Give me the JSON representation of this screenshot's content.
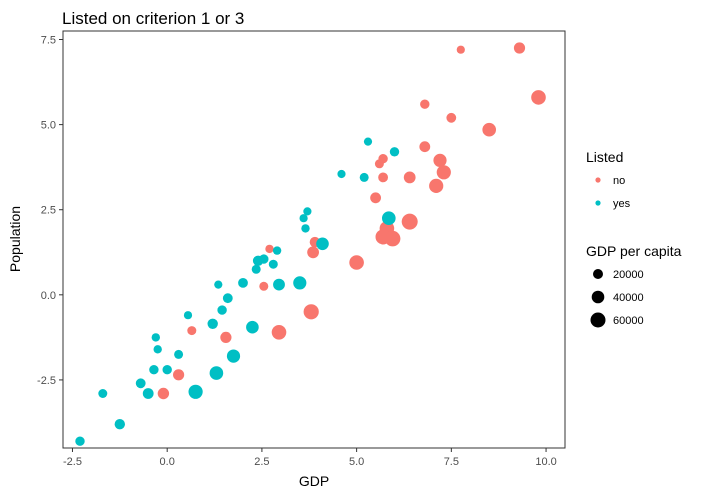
{
  "chart_data": {
    "type": "scatter",
    "title": "Listed on criterion 1 or 3",
    "xlabel": "GDP",
    "ylabel": "Population",
    "xlim": [
      -2.75,
      10.5
    ],
    "ylim": [
      -4.5,
      7.75
    ],
    "xticks": [
      -2.5,
      0.0,
      2.5,
      5.0,
      7.5,
      10.0
    ],
    "xtick_labels": [
      "-2.5",
      "0.0",
      "2.5",
      "5.0",
      "7.5",
      "10.0"
    ],
    "yticks": [
      -2.5,
      0.0,
      2.5,
      5.0,
      7.5
    ],
    "ytick_labels": [
      "-2.5",
      "0.0",
      "2.5",
      "5.0",
      "7.5"
    ],
    "grid": false,
    "legend_placement": "right",
    "colors": {
      "no": "#F8766D",
      "yes": "#00BFC4"
    },
    "color_legend": {
      "title": "Listed",
      "entries": [
        {
          "label": "no",
          "color": "#F8766D"
        },
        {
          "label": "yes",
          "color": "#00BFC4"
        }
      ]
    },
    "size_legend": {
      "title": "GDP per capita",
      "entries": [
        {
          "label": "20000",
          "value": 20000
        },
        {
          "label": "40000",
          "value": 40000
        },
        {
          "label": "60000",
          "value": 60000
        }
      ]
    },
    "series": [
      {
        "name": "no",
        "color": "#F8766D",
        "points": [
          {
            "x": 7.75,
            "y": 7.2,
            "size": 5000
          },
          {
            "x": 9.3,
            "y": 7.25,
            "size": 20000
          },
          {
            "x": 9.8,
            "y": 5.8,
            "size": 50000
          },
          {
            "x": 8.5,
            "y": 4.85,
            "size": 40000
          },
          {
            "x": 6.8,
            "y": 5.6,
            "size": 10000
          },
          {
            "x": 7.5,
            "y": 5.2,
            "size": 12000
          },
          {
            "x": 6.8,
            "y": 4.35,
            "size": 18000
          },
          {
            "x": 5.7,
            "y": 4.0,
            "size": 10000
          },
          {
            "x": 5.6,
            "y": 3.85,
            "size": 8000
          },
          {
            "x": 7.2,
            "y": 3.95,
            "size": 35000
          },
          {
            "x": 7.3,
            "y": 3.6,
            "size": 45000
          },
          {
            "x": 6.4,
            "y": 3.45,
            "size": 25000
          },
          {
            "x": 5.7,
            "y": 3.45,
            "size": 12000
          },
          {
            "x": 7.1,
            "y": 3.2,
            "size": 45000
          },
          {
            "x": 5.5,
            "y": 2.85,
            "size": 18000
          },
          {
            "x": 6.4,
            "y": 2.15,
            "size": 65000
          },
          {
            "x": 5.8,
            "y": 1.95,
            "size": 50000
          },
          {
            "x": 5.7,
            "y": 1.7,
            "size": 55000
          },
          {
            "x": 5.95,
            "y": 1.65,
            "size": 60000
          },
          {
            "x": 3.9,
            "y": 1.55,
            "size": 15000
          },
          {
            "x": 3.85,
            "y": 1.25,
            "size": 25000
          },
          {
            "x": 5.0,
            "y": 0.95,
            "size": 50000
          },
          {
            "x": 2.7,
            "y": 1.35,
            "size": 6000
          },
          {
            "x": 2.55,
            "y": 0.25,
            "size": 8000
          },
          {
            "x": 3.8,
            "y": -0.5,
            "size": 55000
          },
          {
            "x": 0.65,
            "y": -1.05,
            "size": 8000
          },
          {
            "x": 2.95,
            "y": -1.1,
            "size": 50000
          },
          {
            "x": 1.55,
            "y": -1.25,
            "size": 20000
          },
          {
            "x": 0.3,
            "y": -2.35,
            "size": 20000
          },
          {
            "x": -0.1,
            "y": -2.9,
            "size": 22000
          }
        ]
      },
      {
        "name": "yes",
        "color": "#00BFC4",
        "points": [
          {
            "x": -2.3,
            "y": -4.3,
            "size": 10000
          },
          {
            "x": -1.25,
            "y": -3.8,
            "size": 15000
          },
          {
            "x": -1.7,
            "y": -2.9,
            "size": 8000
          },
          {
            "x": -0.5,
            "y": -2.9,
            "size": 18000
          },
          {
            "x": -0.7,
            "y": -2.6,
            "size": 12000
          },
          {
            "x": 0.75,
            "y": -2.85,
            "size": 45000
          },
          {
            "x": -0.35,
            "y": -2.2,
            "size": 10000
          },
          {
            "x": 0.0,
            "y": -2.2,
            "size": 10000
          },
          {
            "x": 1.3,
            "y": -2.3,
            "size": 40000
          },
          {
            "x": 1.75,
            "y": -1.8,
            "size": 35000
          },
          {
            "x": -0.25,
            "y": -1.6,
            "size": 6000
          },
          {
            "x": 0.3,
            "y": -1.75,
            "size": 8000
          },
          {
            "x": -0.3,
            "y": -1.25,
            "size": 6000
          },
          {
            "x": 1.2,
            "y": -0.85,
            "size": 15000
          },
          {
            "x": 2.25,
            "y": -0.95,
            "size": 30000
          },
          {
            "x": 0.55,
            "y": -0.6,
            "size": 5000
          },
          {
            "x": 1.45,
            "y": -0.45,
            "size": 10000
          },
          {
            "x": 1.6,
            "y": -0.1,
            "size": 12000
          },
          {
            "x": 1.35,
            "y": 0.3,
            "size": 5000
          },
          {
            "x": 2.0,
            "y": 0.35,
            "size": 12000
          },
          {
            "x": 2.95,
            "y": 0.3,
            "size": 25000
          },
          {
            "x": 3.5,
            "y": 0.35,
            "size": 35000
          },
          {
            "x": 2.35,
            "y": 0.75,
            "size": 8000
          },
          {
            "x": 2.4,
            "y": 1.0,
            "size": 15000
          },
          {
            "x": 2.55,
            "y": 1.05,
            "size": 10000
          },
          {
            "x": 2.8,
            "y": 0.9,
            "size": 8000
          },
          {
            "x": 2.9,
            "y": 1.3,
            "size": 6000
          },
          {
            "x": 4.1,
            "y": 1.5,
            "size": 30000
          },
          {
            "x": 3.65,
            "y": 1.95,
            "size": 6000
          },
          {
            "x": 3.6,
            "y": 2.25,
            "size": 5000
          },
          {
            "x": 3.7,
            "y": 2.45,
            "size": 5000
          },
          {
            "x": 4.6,
            "y": 3.55,
            "size": 5000
          },
          {
            "x": 5.2,
            "y": 3.45,
            "size": 8000
          },
          {
            "x": 5.85,
            "y": 2.25,
            "size": 40000
          },
          {
            "x": 5.3,
            "y": 4.5,
            "size": 5000
          },
          {
            "x": 6.0,
            "y": 4.2,
            "size": 10000
          }
        ]
      }
    ]
  }
}
